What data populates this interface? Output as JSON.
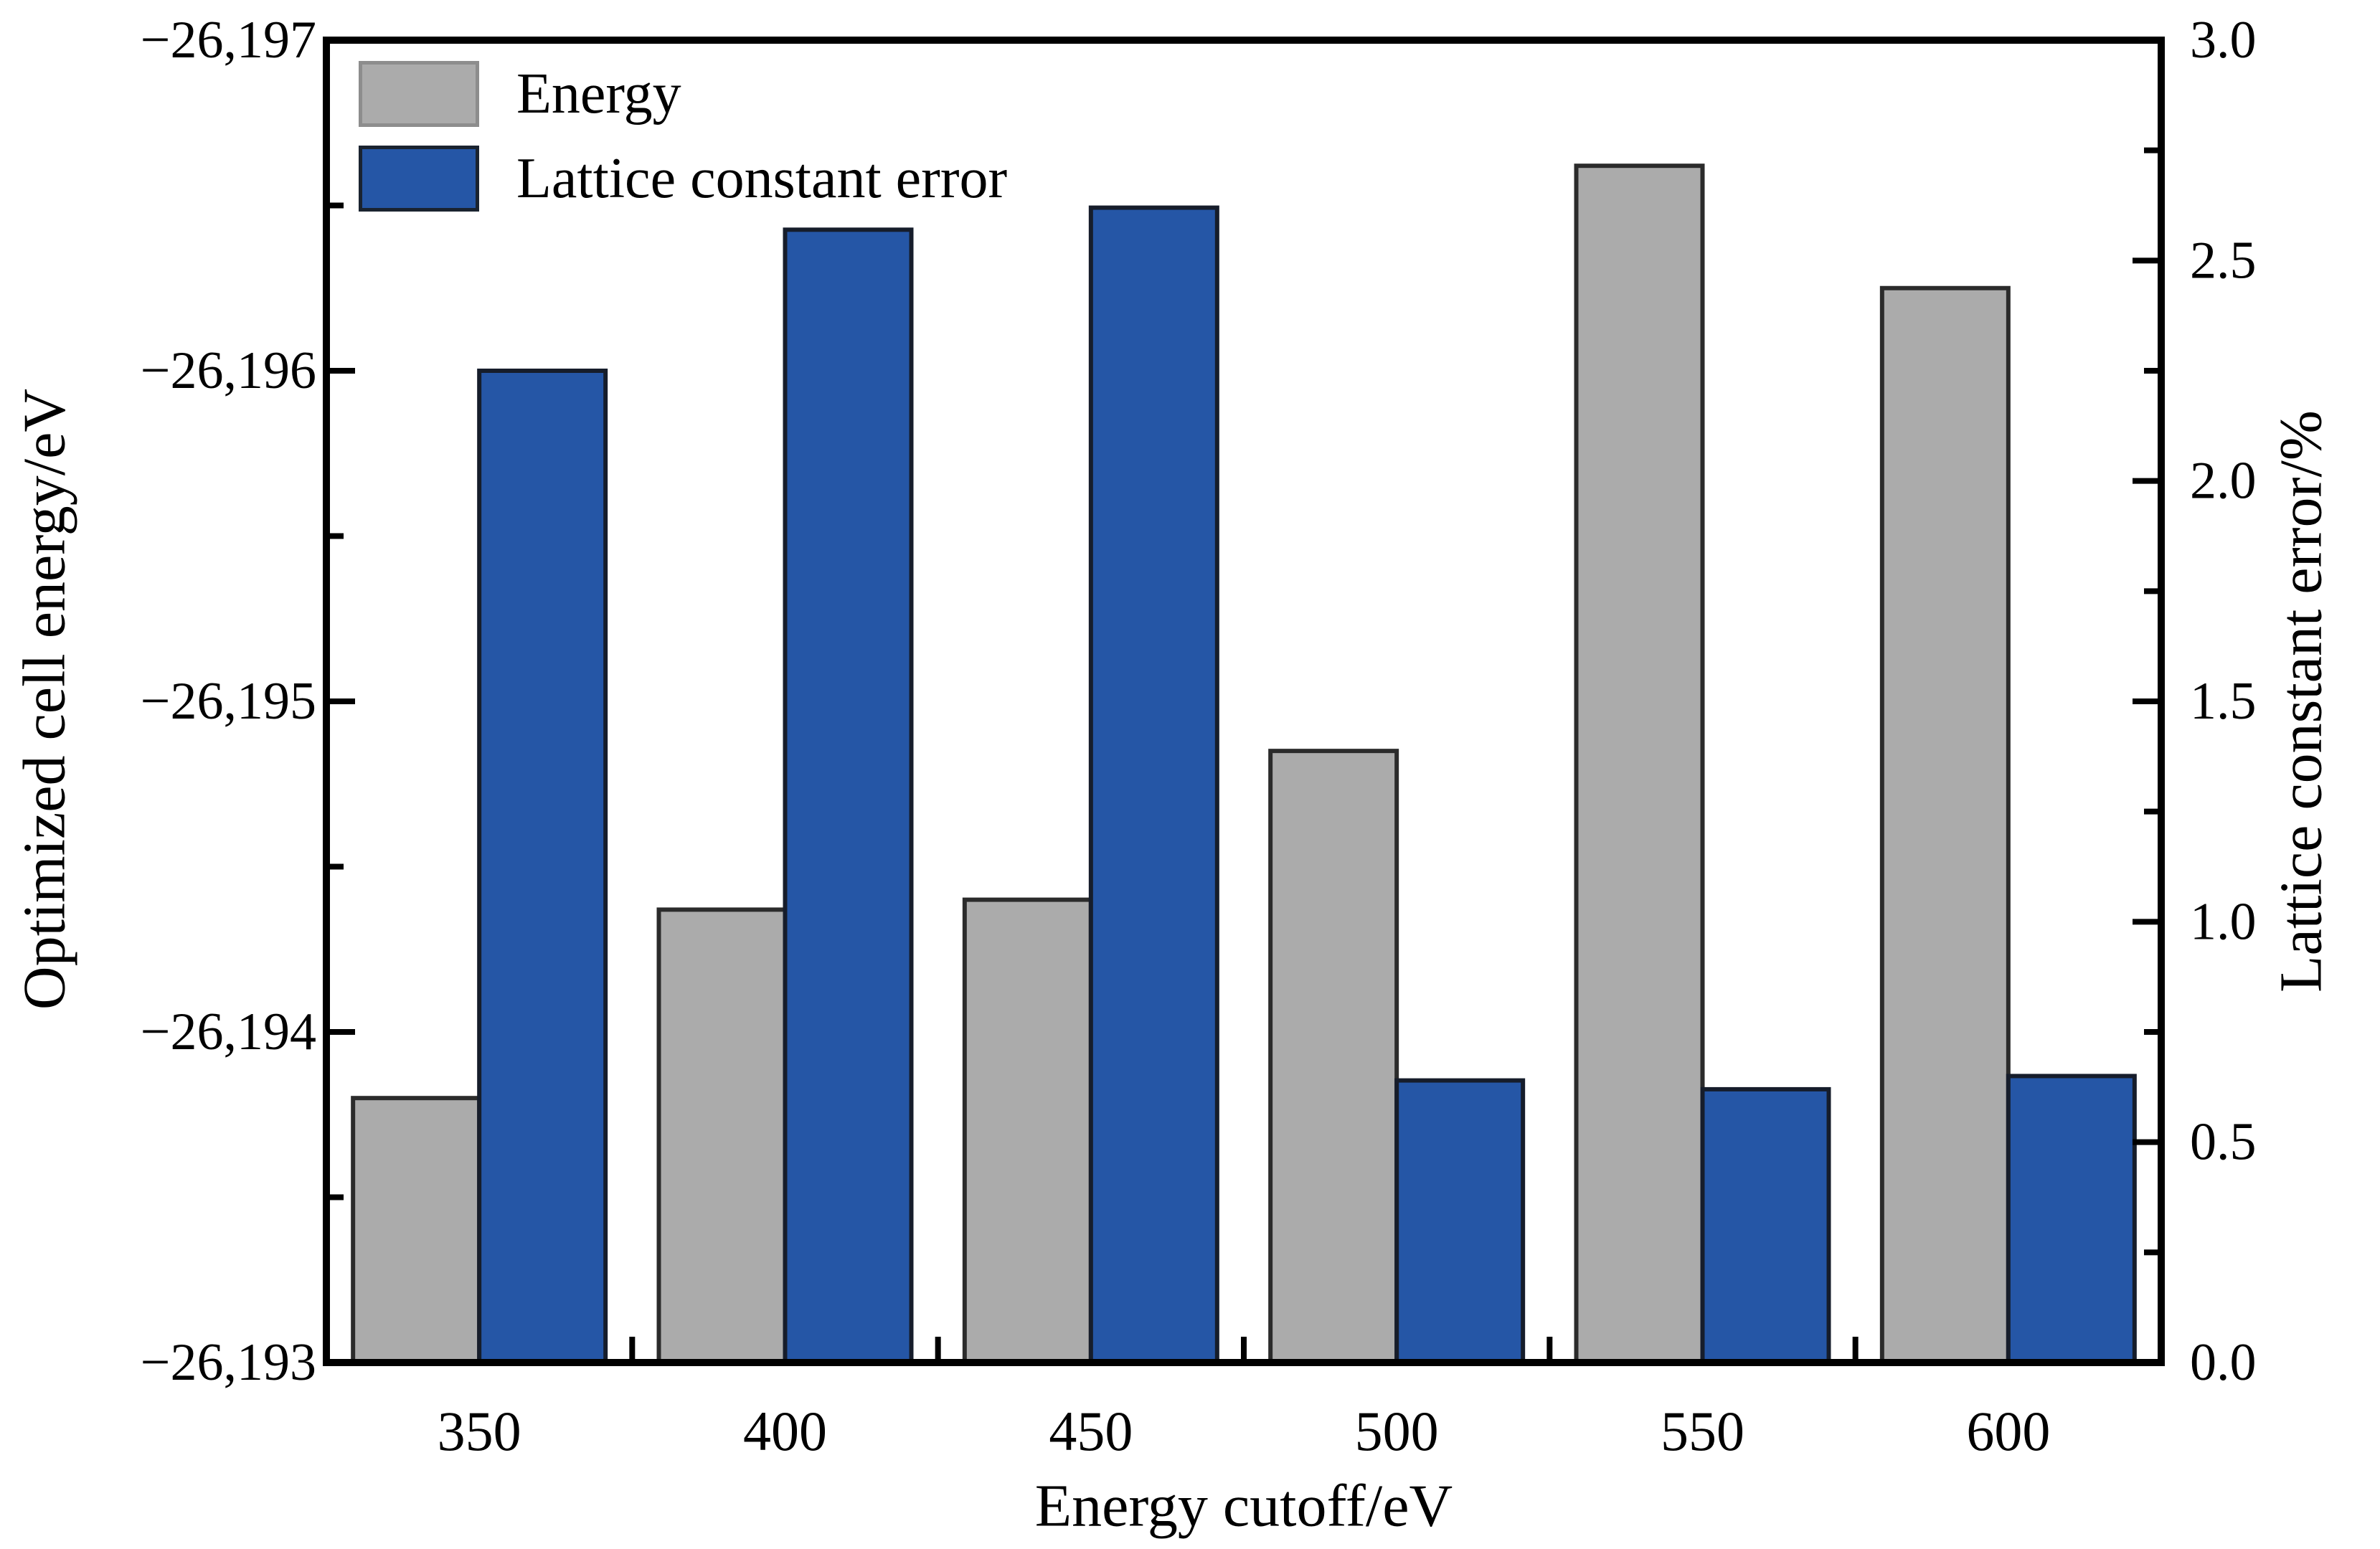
{
  "chart_data": {
    "type": "bar",
    "title": "",
    "categories": [
      350,
      400,
      450,
      500,
      550,
      600
    ],
    "series": [
      {
        "name": "Energy",
        "axis": "left",
        "color": "#ababab",
        "edge_color": "#2b2b2b",
        "values": [
          -26193.8,
          -26194.37,
          -26194.4,
          -26194.85,
          -26196.62,
          -26196.25
        ]
      },
      {
        "name": "Lattice constant error",
        "axis": "right",
        "color": "#2556a6",
        "edge_color": "#161d2b",
        "values": [
          2.25,
          2.57,
          2.62,
          0.64,
          0.62,
          0.65
        ]
      }
    ],
    "x_axis": {
      "label": "Energy cutoff/eV",
      "tick_labels": [
        "350",
        "400",
        "450",
        "500",
        "550",
        "600"
      ]
    },
    "left_axis": {
      "label": "Optimized cell energy/eV",
      "min": -26197,
      "max": -26193,
      "inverted_top_is_min": true,
      "tick_values": [
        -26197,
        -26196,
        -26195,
        -26194,
        -26193
      ],
      "tick_labels": [
        "−26,197",
        "−26,196",
        "−26,195",
        "−26,194",
        "−26,193"
      ],
      "minor_tick_step": 0.5
    },
    "right_axis": {
      "label": "Lattice constant error/%",
      "min": 0.0,
      "max": 3.0,
      "tick_values": [
        3.0,
        2.5,
        2.0,
        1.5,
        1.0,
        0.5,
        0.0
      ],
      "tick_labels": [
        "3.0",
        "2.5",
        "2.0",
        "1.5",
        "1.0",
        "0.5",
        "0.0"
      ],
      "minor_tick_step": 0.25
    },
    "legend": {
      "position": "top-left-inside",
      "items": [
        "Energy",
        "Lattice constant error"
      ]
    },
    "grid": false,
    "background": "#ffffff",
    "spine_color": "#000000"
  }
}
